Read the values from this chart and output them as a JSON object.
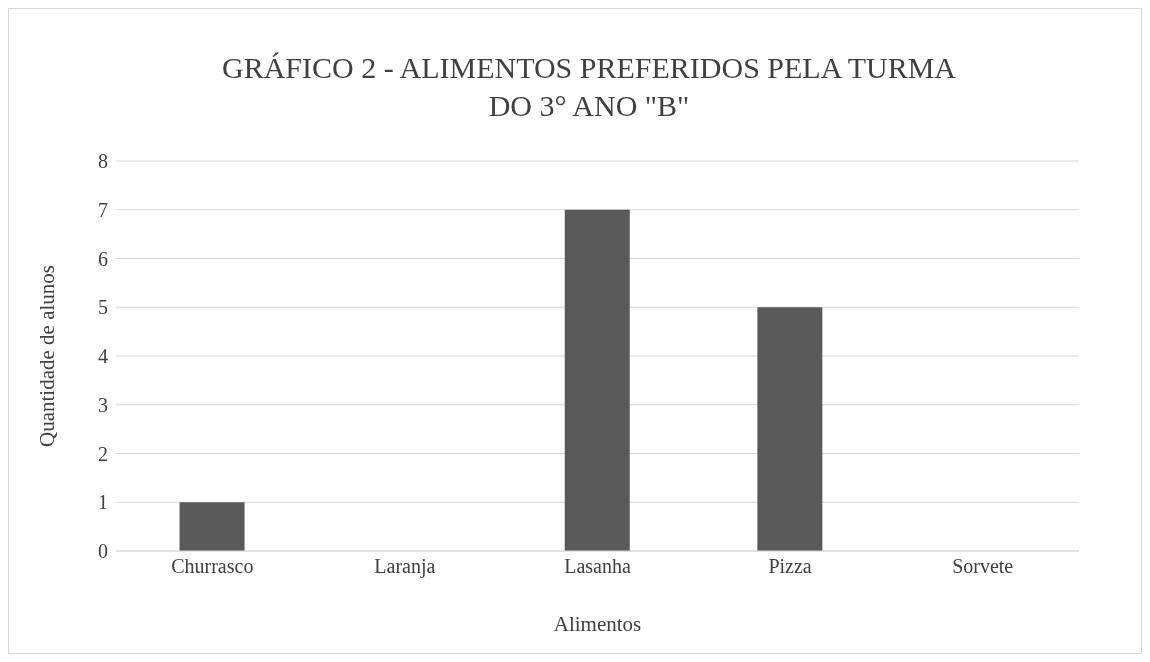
{
  "chart_data": {
    "type": "bar",
    "title": "GRÁFICO 2 - ALIMENTOS PREFERIDOS PELA TURMA DO 3° ANO \"B\"",
    "xlabel": "Alimentos",
    "ylabel": "Quantidade de alunos",
    "categories": [
      "Churrasco",
      "Laranja",
      "Lasanha",
      "Pizza",
      "Sorvete"
    ],
    "values": [
      1,
      0,
      7,
      5,
      0
    ],
    "color": "#595959",
    "ylim": [
      0,
      8
    ],
    "yticks": [
      0,
      1,
      2,
      3,
      4,
      5,
      6,
      7,
      8
    ],
    "grid": "y"
  }
}
